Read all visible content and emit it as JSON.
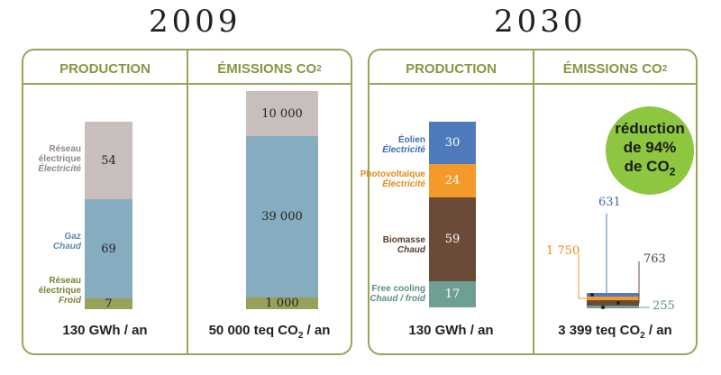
{
  "years": [
    "2009",
    "2030"
  ],
  "headers": {
    "production": "PRODUCTION",
    "emissions": "ÉMISSIONS CO",
    "co2_sub": "2"
  },
  "footers": {
    "p2009": "130 GWh / an",
    "e2009_pre": "50 000 teq CO",
    "e2009_sub": "2",
    "e2009_post": " / an",
    "p2030": "130 GWh / an",
    "e2030_pre": "3 399 teq CO",
    "e2030_sub": "2",
    "e2030_post": " / an"
  },
  "badge": {
    "line1": "réduction",
    "line2": "de 94%",
    "line3_pre": "de CO",
    "line3_sub": "2"
  },
  "labels": {
    "p2009": [
      {
        "name": "Réseau électrique",
        "sub": "Électricité"
      },
      {
        "name": "Gaz",
        "sub": "Chaud"
      },
      {
        "name": "Réseau électrique",
        "sub": "Froid"
      }
    ],
    "p2030": [
      {
        "name": "Éolien",
        "sub": "Électricité"
      },
      {
        "name": "Photovoltaïque",
        "sub": "Électricité"
      },
      {
        "name": "Biomasse",
        "sub": "Chaud"
      },
      {
        "name": "Free cooling",
        "sub": "Chaud / froid"
      }
    ]
  },
  "colors": {
    "grey": "#c8bebc",
    "blue": "#85adbf",
    "olive": "#9aa05a",
    "eolien": "#4f7bbd",
    "pv": "#f39a2b",
    "biomasse": "#6b4a38",
    "freecooling": "#6e9f94",
    "border": "#9aa55a",
    "header": "#8c9440",
    "badge": "#8dc63f"
  },
  "chart_data": [
    {
      "type": "bar",
      "title": "2009 PRODUCTION",
      "unit": "GWh / an",
      "total": "130 GWh / an",
      "series": [
        {
          "name": "Réseau électrique - Électricité",
          "value": 54,
          "label": "54"
        },
        {
          "name": "Gaz - Chaud",
          "value": 69,
          "label": "69"
        },
        {
          "name": "Réseau électrique - Froid",
          "value": 7,
          "label": "7"
        }
      ]
    },
    {
      "type": "bar",
      "title": "2009 ÉMISSIONS CO2",
      "unit": "teq CO2 / an",
      "total": "50 000 teq CO2 / an",
      "series": [
        {
          "value": 10000,
          "label": "10 000"
        },
        {
          "value": 39000,
          "label": "39 000"
        },
        {
          "value": 1000,
          "label": "1 000"
        }
      ]
    },
    {
      "type": "bar",
      "title": "2030 PRODUCTION",
      "unit": "GWh / an",
      "total": "130 GWh / an",
      "series": [
        {
          "name": "Éolien - Électricité",
          "value": 30,
          "label": "30"
        },
        {
          "name": "Photovoltaïque - Électricité",
          "value": 24,
          "label": "24"
        },
        {
          "name": "Biomasse - Chaud",
          "value": 59,
          "label": "59"
        },
        {
          "name": "Free cooling - Chaud / froid",
          "value": 17,
          "label": "17"
        }
      ]
    },
    {
      "type": "bar",
      "title": "2030 ÉMISSIONS CO2",
      "unit": "teq CO2 / an",
      "total": "3 399 teq CO2 / an",
      "series": [
        {
          "value": 631,
          "label": "631"
        },
        {
          "value": 1750,
          "label": "1 750"
        },
        {
          "value": 763,
          "label": "763"
        },
        {
          "value": 255,
          "label": "255"
        }
      ]
    }
  ]
}
